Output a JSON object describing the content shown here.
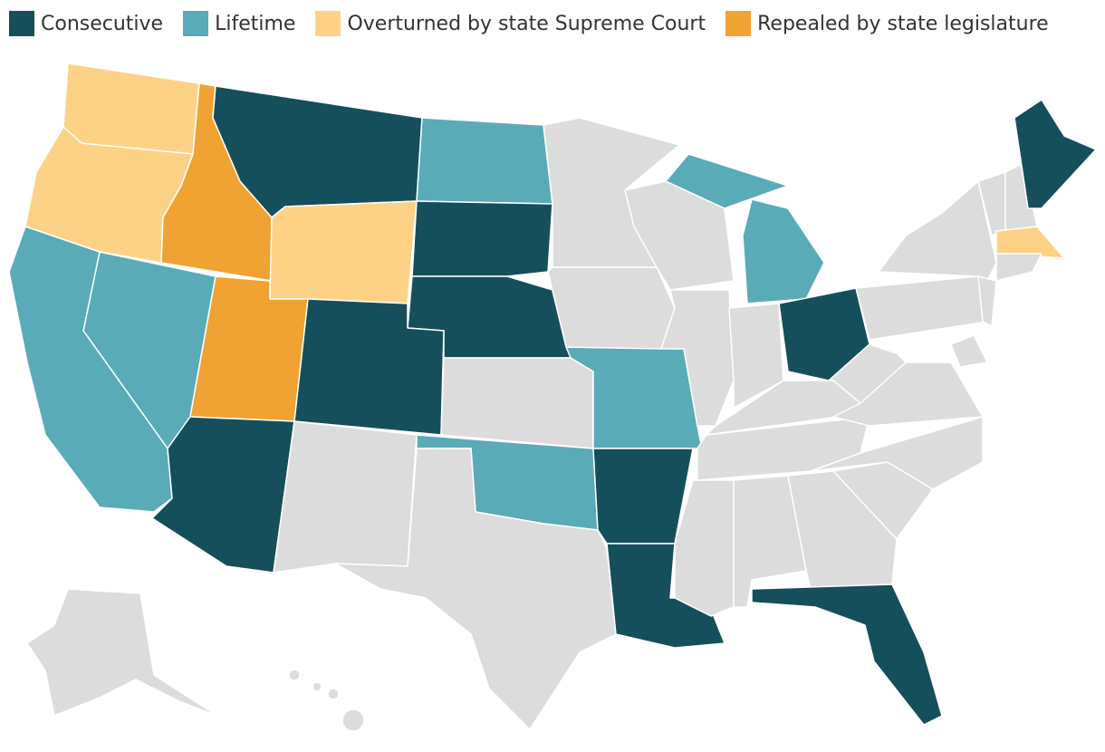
{
  "legend": [
    {
      "label": "Consecutive",
      "color": "#154f5b"
    },
    {
      "label": "Lifetime",
      "color": "#5aabb8"
    },
    {
      "label": "Overturned by state Supreme Court",
      "color": "#fed286"
    },
    {
      "label": "Repealed by state legislature",
      "color": "#f0a232"
    }
  ]
}
